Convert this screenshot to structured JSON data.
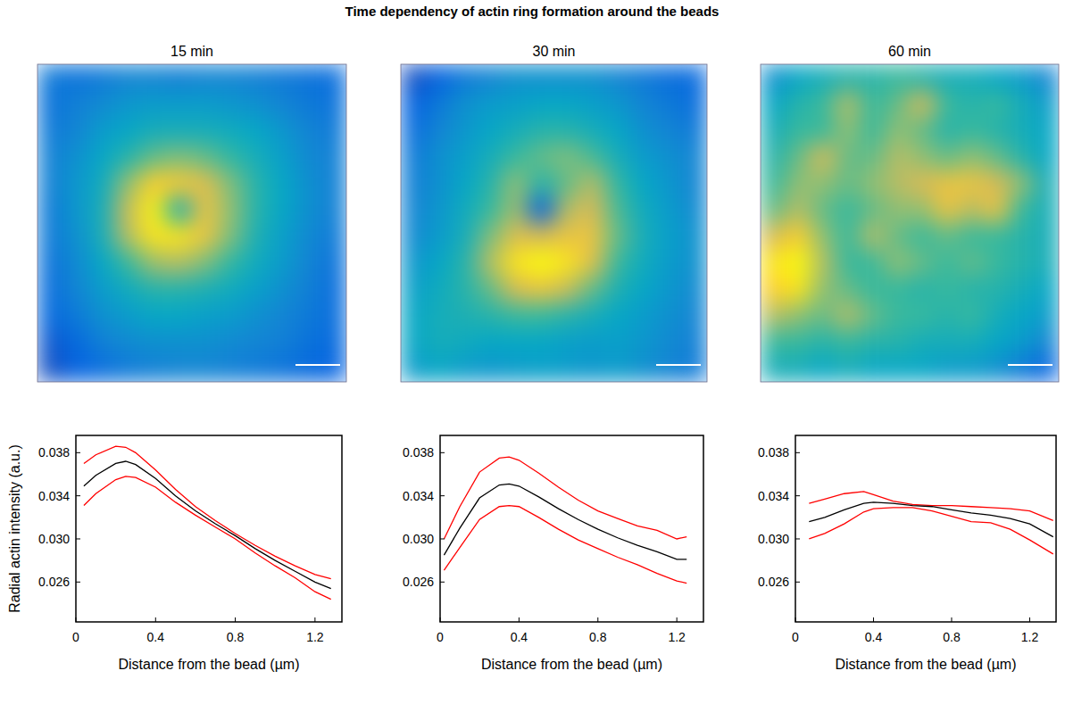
{
  "title": "Time dependency of actin ring formation around the beads",
  "chart_data": [
    {
      "type": "heatmap",
      "title": "15 min",
      "tick_labels": false,
      "zlim": [
        0,
        1
      ],
      "cells": [
        [
          0.25,
          0.22,
          0.25,
          0.3,
          0.3,
          0.28,
          0.3,
          0.3,
          0.28,
          0.25,
          0.22,
          0.2
        ],
        [
          0.22,
          0.28,
          0.32,
          0.38,
          0.4,
          0.4,
          0.4,
          0.38,
          0.35,
          0.3,
          0.25,
          0.22
        ],
        [
          0.25,
          0.3,
          0.4,
          0.45,
          0.5,
          0.5,
          0.5,
          0.48,
          0.45,
          0.38,
          0.3,
          0.25
        ],
        [
          0.28,
          0.35,
          0.45,
          0.55,
          0.65,
          0.68,
          0.65,
          0.58,
          0.5,
          0.42,
          0.32,
          0.28
        ],
        [
          0.28,
          0.38,
          0.48,
          0.7,
          0.9,
          0.88,
          0.82,
          0.68,
          0.55,
          0.45,
          0.35,
          0.28
        ],
        [
          0.25,
          0.38,
          0.5,
          0.78,
          0.98,
          0.5,
          0.85,
          0.7,
          0.55,
          0.45,
          0.35,
          0.28
        ],
        [
          0.25,
          0.35,
          0.5,
          0.75,
          0.95,
          0.95,
          0.85,
          0.68,
          0.52,
          0.42,
          0.32,
          0.25
        ],
        [
          0.22,
          0.32,
          0.45,
          0.6,
          0.72,
          0.75,
          0.68,
          0.58,
          0.48,
          0.4,
          0.3,
          0.22
        ],
        [
          0.2,
          0.3,
          0.4,
          0.48,
          0.55,
          0.55,
          0.52,
          0.48,
          0.42,
          0.35,
          0.28,
          0.2
        ],
        [
          0.18,
          0.25,
          0.35,
          0.4,
          0.45,
          0.45,
          0.42,
          0.4,
          0.35,
          0.3,
          0.25,
          0.2
        ],
        [
          0.12,
          0.18,
          0.28,
          0.32,
          0.35,
          0.35,
          0.35,
          0.32,
          0.3,
          0.28,
          0.22,
          0.18
        ],
        [
          0.1,
          0.15,
          0.2,
          0.25,
          0.28,
          0.3,
          0.3,
          0.28,
          0.25,
          0.22,
          0.18,
          0.15
        ]
      ]
    },
    {
      "type": "heatmap",
      "title": "30 min",
      "tick_labels": false,
      "zlim": [
        0,
        1
      ],
      "cells": [
        [
          0.1,
          0.15,
          0.25,
          0.3,
          0.35,
          0.35,
          0.35,
          0.35,
          0.3,
          0.25,
          0.2,
          0.18
        ],
        [
          0.15,
          0.25,
          0.35,
          0.4,
          0.42,
          0.45,
          0.45,
          0.42,
          0.38,
          0.3,
          0.25,
          0.2
        ],
        [
          0.2,
          0.3,
          0.38,
          0.45,
          0.5,
          0.55,
          0.55,
          0.5,
          0.45,
          0.35,
          0.3,
          0.25
        ],
        [
          0.25,
          0.35,
          0.42,
          0.5,
          0.6,
          0.65,
          0.68,
          0.62,
          0.5,
          0.4,
          0.35,
          0.3
        ],
        [
          0.28,
          0.35,
          0.45,
          0.55,
          0.7,
          0.55,
          0.65,
          0.75,
          0.58,
          0.45,
          0.38,
          0.3
        ],
        [
          0.3,
          0.38,
          0.48,
          0.6,
          0.72,
          0.15,
          0.75,
          0.8,
          0.62,
          0.48,
          0.4,
          0.32
        ],
        [
          0.32,
          0.4,
          0.5,
          0.68,
          0.82,
          0.8,
          0.85,
          0.85,
          0.65,
          0.5,
          0.42,
          0.35
        ],
        [
          0.38,
          0.45,
          0.55,
          0.75,
          0.95,
          1.0,
          0.95,
          0.82,
          0.6,
          0.48,
          0.4,
          0.35
        ],
        [
          0.42,
          0.48,
          0.55,
          0.65,
          0.8,
          0.85,
          0.78,
          0.65,
          0.52,
          0.45,
          0.38,
          0.32
        ],
        [
          0.45,
          0.5,
          0.52,
          0.55,
          0.6,
          0.6,
          0.55,
          0.5,
          0.45,
          0.4,
          0.35,
          0.3
        ],
        [
          0.45,
          0.5,
          0.48,
          0.45,
          0.45,
          0.45,
          0.42,
          0.4,
          0.42,
          0.38,
          0.32,
          0.28
        ],
        [
          0.4,
          0.45,
          0.4,
          0.38,
          0.4,
          0.42,
          0.4,
          0.38,
          0.4,
          0.35,
          0.3,
          0.25
        ]
      ]
    },
    {
      "type": "heatmap",
      "title": "60 min",
      "tick_labels": false,
      "zlim": [
        0,
        1
      ],
      "cells": [
        [
          0.35,
          0.45,
          0.5,
          0.55,
          0.55,
          0.6,
          0.55,
          0.5,
          0.5,
          0.45,
          0.4,
          0.3
        ],
        [
          0.45,
          0.55,
          0.6,
          0.75,
          0.6,
          0.65,
          0.8,
          0.6,
          0.55,
          0.6,
          0.5,
          0.4
        ],
        [
          0.5,
          0.6,
          0.6,
          0.7,
          0.6,
          0.7,
          0.65,
          0.55,
          0.6,
          0.55,
          0.5,
          0.45
        ],
        [
          0.55,
          0.65,
          0.8,
          0.65,
          0.65,
          0.75,
          0.7,
          0.65,
          0.7,
          0.65,
          0.55,
          0.45
        ],
        [
          0.6,
          0.7,
          0.7,
          0.65,
          0.7,
          0.75,
          0.8,
          0.85,
          0.85,
          0.8,
          0.7,
          0.5
        ],
        [
          0.65,
          0.75,
          0.65,
          0.6,
          0.65,
          0.7,
          0.7,
          0.85,
          0.75,
          0.85,
          0.6,
          0.5
        ],
        [
          0.8,
          0.9,
          0.7,
          0.6,
          0.75,
          0.65,
          0.6,
          0.65,
          0.6,
          0.6,
          0.55,
          0.5
        ],
        [
          0.95,
          1.0,
          0.75,
          0.6,
          0.6,
          0.7,
          0.65,
          0.6,
          0.65,
          0.6,
          0.55,
          0.5
        ],
        [
          0.9,
          0.95,
          0.7,
          0.65,
          0.6,
          0.6,
          0.55,
          0.6,
          0.55,
          0.55,
          0.5,
          0.45
        ],
        [
          0.75,
          0.7,
          0.65,
          0.75,
          0.65,
          0.6,
          0.6,
          0.55,
          0.6,
          0.5,
          0.45,
          0.4
        ],
        [
          0.6,
          0.6,
          0.55,
          0.6,
          0.55,
          0.55,
          0.5,
          0.5,
          0.5,
          0.45,
          0.4,
          0.3
        ],
        [
          0.5,
          0.5,
          0.45,
          0.5,
          0.45,
          0.45,
          0.45,
          0.4,
          0.4,
          0.35,
          0.25,
          0.15
        ]
      ]
    },
    {
      "type": "line",
      "ylabel": "Radial actin intensity (a.u.)",
      "xlabel": "Distance from the bead (µm)",
      "xlim": [
        0,
        1.335
      ],
      "ylim": [
        0.0223,
        0.0396
      ],
      "xticks": [
        0,
        0.4,
        0.8,
        1.2
      ],
      "yticks": [
        0.026,
        {
          "value": 0.03,
          "label": "0.030"
        },
        0.034,
        0.038
      ],
      "x": [
        0.04,
        0.1,
        0.2,
        0.25,
        0.3,
        0.4,
        0.5,
        0.6,
        0.7,
        0.8,
        0.9,
        1.0,
        1.1,
        1.2,
        1.28
      ],
      "series": [
        {
          "color": "#ff0000",
          "values": [
            0.037,
            0.0378,
            0.0386,
            0.0385,
            0.038,
            0.0364,
            0.0346,
            0.033,
            0.0317,
            0.0305,
            0.0294,
            0.0284,
            0.0275,
            0.0267,
            0.0263
          ]
        },
        {
          "color": "#000000",
          "values": [
            0.0349,
            0.0359,
            0.037,
            0.0372,
            0.0369,
            0.0356,
            0.034,
            0.0326,
            0.0314,
            0.0303,
            0.0291,
            0.028,
            0.027,
            0.026,
            0.0254
          ]
        },
        {
          "color": "#ff0000",
          "values": [
            0.0331,
            0.0342,
            0.0355,
            0.0358,
            0.0357,
            0.0348,
            0.0334,
            0.0322,
            0.0311,
            0.03,
            0.0287,
            0.0275,
            0.0264,
            0.0251,
            0.0244
          ]
        }
      ]
    },
    {
      "type": "line",
      "xlabel": "Distance from the bead (µm)",
      "xlim": [
        0,
        1.335
      ],
      "ylim": [
        0.0223,
        0.0396
      ],
      "xticks": [
        0,
        0.4,
        0.8,
        1.2
      ],
      "yticks": [
        0.026,
        {
          "value": 0.03,
          "label": "0.030"
        },
        0.034,
        0.038
      ],
      "x": [
        0.02,
        0.1,
        0.2,
        0.3,
        0.35,
        0.4,
        0.5,
        0.6,
        0.7,
        0.8,
        0.9,
        1.0,
        1.1,
        1.2,
        1.25
      ],
      "series": [
        {
          "color": "#ff0000",
          "values": [
            0.03,
            0.033,
            0.0362,
            0.0375,
            0.0376,
            0.0373,
            0.0361,
            0.0348,
            0.0336,
            0.0326,
            0.0319,
            0.0312,
            0.0308,
            0.03,
            0.0302
          ]
        },
        {
          "color": "#000000",
          "values": [
            0.0285,
            0.031,
            0.0338,
            0.035,
            0.0351,
            0.0349,
            0.0339,
            0.0328,
            0.0318,
            0.0309,
            0.0301,
            0.0294,
            0.0288,
            0.0281,
            0.0281
          ]
        },
        {
          "color": "#ff0000",
          "values": [
            0.0271,
            0.0292,
            0.0318,
            0.033,
            0.0331,
            0.033,
            0.032,
            0.0309,
            0.0299,
            0.0291,
            0.0283,
            0.0276,
            0.0268,
            0.0261,
            0.0259
          ]
        }
      ]
    },
    {
      "type": "line",
      "xlabel": "Distance from the bead (µm)",
      "xlim": [
        0,
        1.335
      ],
      "ylim": [
        0.0223,
        0.0396
      ],
      "xticks": [
        0,
        0.4,
        0.8,
        1.2
      ],
      "yticks": [
        0.026,
        {
          "value": 0.03,
          "label": "0.030"
        },
        0.034,
        0.038
      ],
      "x": [
        0.07,
        0.15,
        0.25,
        0.35,
        0.4,
        0.5,
        0.6,
        0.7,
        0.8,
        0.9,
        1.0,
        1.1,
        1.2,
        1.32
      ],
      "series": [
        {
          "color": "#ff0000",
          "values": [
            0.0333,
            0.0337,
            0.0342,
            0.0344,
            0.0341,
            0.0335,
            0.0332,
            0.0331,
            0.0331,
            0.033,
            0.0329,
            0.0328,
            0.0326,
            0.0317
          ]
        },
        {
          "color": "#000000",
          "values": [
            0.0316,
            0.032,
            0.0327,
            0.0333,
            0.0334,
            0.0333,
            0.0331,
            0.033,
            0.0327,
            0.0324,
            0.0322,
            0.0319,
            0.0314,
            0.0302
          ]
        },
        {
          "color": "#ff0000",
          "values": [
            0.03,
            0.0305,
            0.0314,
            0.0325,
            0.0328,
            0.0329,
            0.0329,
            0.0326,
            0.0321,
            0.0316,
            0.0315,
            0.0309,
            0.0299,
            0.0286
          ]
        }
      ]
    }
  ]
}
